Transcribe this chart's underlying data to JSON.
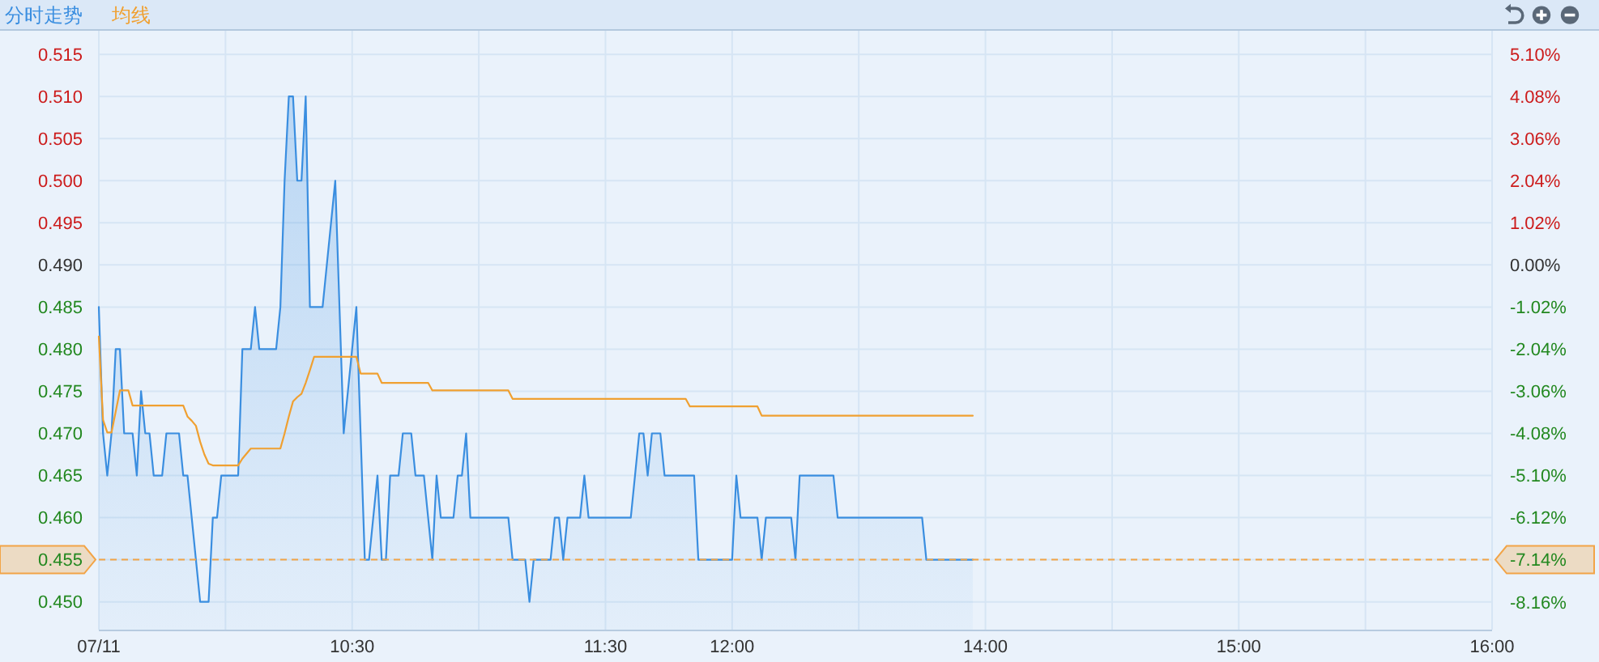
{
  "chart_data": {
    "type": "area",
    "legend": "top left",
    "grid": true,
    "categories": [
      "07/11",
      null,
      null,
      null,
      null,
      null,
      null,
      null,
      null,
      null,
      null,
      null,
      null,
      null,
      null,
      null,
      null,
      null,
      null,
      null,
      null,
      null,
      null,
      null,
      null,
      null,
      null,
      null,
      null,
      null,
      null,
      null,
      null,
      null,
      null,
      null,
      null,
      null,
      null,
      null,
      null,
      null,
      null,
      null,
      null,
      null,
      null,
      null,
      null,
      null,
      null,
      null,
      null,
      null,
      null,
      null,
      null,
      null,
      null,
      null,
      "10:30",
      null,
      null,
      null,
      null,
      null,
      null,
      null,
      null,
      null,
      null,
      null,
      null,
      null,
      null,
      null,
      null,
      null,
      null,
      null,
      null,
      null,
      null,
      null,
      null,
      null,
      null,
      null,
      null,
      null,
      null,
      null,
      null,
      null,
      null,
      null,
      null,
      null,
      null,
      null,
      null,
      null,
      null,
      null,
      null,
      null,
      null,
      null,
      null,
      null,
      null,
      null,
      null,
      null,
      null,
      null,
      null,
      null,
      null,
      null,
      "11:30",
      null,
      null,
      null,
      null,
      null,
      null,
      null,
      null,
      null,
      null,
      null,
      null,
      null,
      null,
      null,
      null,
      null,
      null,
      null,
      null,
      null,
      null,
      null,
      null,
      null,
      null,
      null,
      null,
      null,
      "12:00",
      null,
      null,
      null,
      null,
      null,
      null,
      null,
      null,
      null,
      null,
      null,
      null,
      null,
      null,
      null,
      null,
      null,
      null,
      null,
      null,
      null,
      null,
      null,
      null,
      null,
      null,
      null,
      null,
      null,
      null,
      null,
      null,
      null,
      null,
      null,
      null,
      null,
      null,
      null,
      null,
      null,
      null,
      null,
      null,
      null,
      null,
      null,
      null,
      null,
      null,
      null,
      null,
      null,
      null,
      null,
      null,
      null,
      null,
      null,
      "14:00",
      null,
      null,
      null,
      null,
      null,
      null,
      null,
      null,
      null,
      null,
      null,
      null,
      null,
      null,
      null,
      null,
      null,
      null,
      null,
      null,
      null,
      null,
      null,
      null,
      null,
      null,
      null,
      null,
      null,
      null,
      null,
      null,
      null,
      null,
      null,
      null,
      null,
      null,
      null,
      null,
      null,
      null,
      null,
      null,
      null,
      null,
      null,
      null,
      null,
      null,
      null,
      null,
      null,
      null,
      null,
      null,
      null,
      null,
      null,
      "15:00",
      null,
      null,
      null,
      null,
      null,
      null,
      null,
      null,
      null,
      null,
      null,
      null,
      null,
      null,
      null,
      null,
      null,
      null,
      null,
      null,
      null,
      null,
      null,
      null,
      null,
      null,
      null,
      null,
      null,
      null,
      null,
      null,
      null,
      null,
      null,
      null,
      null,
      null,
      null,
      null,
      null,
      null,
      null,
      null,
      null,
      null,
      null,
      null,
      null,
      null,
      null,
      null,
      null,
      null,
      null,
      null,
      null,
      null,
      null,
      "16:00"
    ],
    "ylim": [
      0.4467,
      0.5178
    ],
    "yticks": [
      {
        "value": 0.45,
        "label": "0.450"
      },
      0.455,
      {
        "value": 0.46,
        "label": "0.460"
      },
      0.465,
      {
        "value": 0.47,
        "label": "0.470"
      },
      0.475,
      {
        "value": 0.48,
        "label": "0.480"
      },
      0.485,
      {
        "value": 0.49,
        "label": "0.490"
      },
      0.495,
      {
        "value": 0.5,
        "label": "0.500"
      },
      0.505,
      {
        "value": 0.51,
        "label": "0.510"
      },
      0.515
    ],
    "y2lim": [
      -8.83,
      5.67
    ],
    "y2ticks": [
      {
        "value": -8.16,
        "label": "-8.16%"
      },
      {
        "value": -7.14,
        "label": "-7.14%"
      },
      {
        "value": -6.12,
        "label": "-6.12%"
      },
      {
        "value": -5.1,
        "label": "-5.10%"
      },
      {
        "value": -4.08,
        "label": "-4.08%"
      },
      {
        "value": -3.06,
        "label": "-3.06%"
      },
      {
        "value": -2.04,
        "label": "-2.04%"
      },
      {
        "value": -1.02,
        "label": "-1.02%"
      },
      {
        "value": 0,
        "label": "0.00%"
      },
      {
        "value": 1.02,
        "label": "1.02%"
      },
      {
        "value": 2.04,
        "label": "2.04%"
      },
      {
        "value": 3.06,
        "label": "3.06%"
      },
      {
        "value": 4.08,
        "label": "4.08%"
      },
      {
        "value": 5.1,
        "label": "5.10%"
      }
    ],
    "series": [
      {
        "name": "分时走势",
        "color": "#3a8ee0",
        "values": [
          0.485,
          0.47,
          0.465,
          0.47,
          0.48,
          0.48,
          0.47,
          0.47,
          0.47,
          0.465,
          0.475,
          0.47,
          0.47,
          0.465,
          0.465,
          0.465,
          0.47,
          0.47,
          0.47,
          0.47,
          0.465,
          0.465,
          0.46,
          0.455,
          0.45,
          0.45,
          0.45,
          0.46,
          0.46,
          0.465,
          0.465,
          0.465,
          0.465,
          0.465,
          0.48,
          0.48,
          0.48,
          0.485,
          0.48,
          0.48,
          0.48,
          0.48,
          0.48,
          0.485,
          0.5,
          0.51,
          0.51,
          0.5,
          0.5,
          0.51,
          0.485,
          0.485,
          0.485,
          0.485,
          0.49,
          0.495,
          0.5,
          0.485,
          0.47,
          0.475,
          0.48,
          0.485,
          0.47,
          0.455,
          0.455,
          0.46,
          0.465,
          0.455,
          0.455,
          0.465,
          0.465,
          0.465,
          0.47,
          0.47,
          0.47,
          0.465,
          0.465,
          0.465,
          0.46,
          0.455,
          0.465,
          0.46,
          0.46,
          0.46,
          0.46,
          0.465,
          0.465,
          0.47,
          0.46,
          0.46,
          0.46,
          0.46,
          0.46,
          0.46,
          0.46,
          0.46,
          0.46,
          0.46,
          0.455,
          0.455,
          0.455,
          0.455,
          0.45,
          0.455,
          0.455,
          0.455,
          0.455,
          0.455,
          0.46,
          0.46,
          0.455,
          0.46,
          0.46,
          0.46,
          0.46,
          0.465,
          0.46,
          0.46,
          0.46,
          0.46,
          0.46,
          0.46,
          0.46,
          0.46,
          0.46,
          0.46,
          0.46,
          0.465,
          0.47,
          0.47,
          0.465,
          0.47,
          0.47,
          0.47,
          0.465,
          0.465,
          0.465,
          0.465,
          0.465,
          0.465,
          0.465,
          0.465,
          0.455,
          0.455,
          0.455,
          0.455,
          0.455,
          0.455,
          0.455,
          0.455,
          0.455,
          0.465,
          0.46,
          0.46,
          0.46,
          0.46,
          0.46,
          0.455,
          0.46,
          0.46,
          0.46,
          0.46,
          0.46,
          0.46,
          0.46,
          0.455,
          0.465,
          0.465,
          0.465,
          0.465,
          0.465,
          0.465,
          0.465,
          0.465,
          0.465,
          0.46,
          0.46,
          0.46,
          0.46,
          0.46,
          0.46,
          0.46,
          0.46,
          0.46,
          0.46,
          0.46,
          0.46,
          0.46,
          0.46,
          0.46,
          0.46,
          0.46,
          0.46,
          0.46,
          0.46,
          0.46,
          0.455,
          0.455,
          0.455,
          0.455,
          0.455,
          0.455,
          0.455,
          0.455,
          0.455,
          0.455,
          0.455,
          0.455,
          null,
          null,
          null,
          null,
          null,
          null,
          null,
          null,
          null,
          null,
          null,
          null,
          null,
          null,
          null,
          null,
          null,
          null,
          null,
          null,
          null,
          null,
          null,
          null,
          null,
          null,
          null,
          null,
          null,
          null,
          null,
          null,
          null,
          null,
          null,
          null,
          null,
          null,
          null,
          null,
          null,
          null,
          null,
          null,
          null,
          null,
          null,
          null,
          null,
          null,
          null,
          null,
          null,
          null,
          null,
          null,
          null,
          null,
          null,
          null,
          null,
          null,
          null,
          null,
          null,
          null,
          null,
          null,
          null,
          null,
          null,
          null,
          null,
          null,
          null,
          null,
          null,
          null,
          null,
          null,
          null,
          null,
          null,
          null,
          null,
          null,
          null,
          null,
          null,
          null,
          null,
          null,
          null,
          null,
          null,
          null,
          null,
          null,
          null,
          null,
          null,
          null,
          null,
          null,
          null,
          null,
          null,
          null,
          null,
          null,
          null,
          null,
          null,
          null,
          null,
          null,
          null,
          null,
          null,
          null,
          null,
          null,
          null
        ]
      },
      {
        "name": "均线",
        "type": "line",
        "color": "#f0a030",
        "values": [
          0.4815,
          0.4716,
          0.4701,
          0.4701,
          0.4726,
          0.4751,
          0.4751,
          0.4751,
          0.4733,
          0.4733,
          0.4733,
          0.4733,
          0.4733,
          0.4733,
          0.4733,
          0.4733,
          0.4733,
          0.4733,
          0.4733,
          0.4733,
          0.4733,
          0.472,
          0.4715,
          0.4709,
          0.469,
          0.4675,
          0.4664,
          0.4662,
          0.4662,
          0.4662,
          0.4662,
          0.4662,
          0.4662,
          0.4662,
          0.467,
          0.4676,
          0.4682,
          0.4682,
          0.4682,
          0.4682,
          0.4682,
          0.4682,
          0.4682,
          0.4682,
          0.47,
          0.472,
          0.4738,
          0.4743,
          0.4747,
          0.476,
          0.4775,
          0.4791,
          0.4791,
          0.4791,
          0.4791,
          0.4791,
          0.4791,
          0.4791,
          0.4791,
          0.4791,
          0.4791,
          0.4791,
          0.4771,
          0.4771,
          0.4771,
          0.4771,
          0.4771,
          0.476,
          0.476,
          0.476,
          0.476,
          0.476,
          0.476,
          0.476,
          0.476,
          0.476,
          0.476,
          0.476,
          0.476,
          0.4751,
          0.4751,
          0.4751,
          0.4751,
          0.4751,
          0.4751,
          0.4751,
          0.4751,
          0.4751,
          0.4751,
          0.4751,
          0.4751,
          0.4751,
          0.4751,
          0.4751,
          0.4751,
          0.4751,
          0.4751,
          0.4751,
          0.4741,
          0.4741,
          0.4741,
          0.4741,
          0.4741,
          0.4741,
          0.4741,
          0.4741,
          0.4741,
          0.4741,
          0.4741,
          0.4741,
          0.4741,
          0.4741,
          0.4741,
          0.4741,
          0.4741,
          0.4741,
          0.4741,
          0.4741,
          0.4741,
          0.4741,
          0.4741,
          0.4741,
          0.4741,
          0.4741,
          0.4741,
          0.4741,
          0.4741,
          0.4741,
          0.4741,
          0.4741,
          0.4741,
          0.4741,
          0.4741,
          0.4741,
          0.4741,
          0.4741,
          0.4741,
          0.4741,
          0.4741,
          0.4741,
          0.4732,
          0.4732,
          0.4732,
          0.4732,
          0.4732,
          0.4732,
          0.4732,
          0.4732,
          0.4732,
          0.4732,
          0.4732,
          0.4732,
          0.4732,
          0.4732,
          0.4732,
          0.4732,
          0.4732,
          0.4721,
          0.4721,
          0.4721,
          0.4721,
          0.4721,
          0.4721,
          0.4721,
          0.4721,
          0.4721,
          0.4721,
          0.4721,
          0.4721,
          0.4721,
          0.4721,
          0.4721,
          0.4721,
          0.4721,
          0.4721,
          0.4721,
          0.4721,
          0.4721,
          0.4721,
          0.4721,
          0.4721,
          0.4721,
          0.4721,
          0.4721,
          0.4721,
          0.4721,
          0.4721,
          0.4721,
          0.4721,
          0.4721,
          0.4721,
          0.4721,
          0.4721,
          0.4721,
          0.4721,
          0.4721,
          0.4721,
          0.4721,
          0.4721,
          0.4721,
          0.4721,
          0.4721,
          0.4721,
          0.4721,
          0.4721,
          0.4721,
          0.4721,
          0.4721,
          null,
          null,
          null,
          null,
          null,
          null,
          null,
          null,
          null,
          null,
          null,
          null,
          null,
          null,
          null,
          null,
          null,
          null,
          null,
          null,
          null,
          null,
          null,
          null,
          null,
          null,
          null,
          null,
          null,
          null,
          null,
          null,
          null,
          null,
          null,
          null,
          null,
          null,
          null,
          null,
          null,
          null,
          null,
          null,
          null,
          null,
          null,
          null,
          null,
          null,
          null,
          null,
          null,
          null,
          null,
          null,
          null,
          null,
          null,
          null,
          null,
          null,
          null,
          null,
          null,
          null,
          null,
          null,
          null,
          null,
          null,
          null,
          null,
          null,
          null,
          null,
          null,
          null,
          null,
          null,
          null,
          null,
          null,
          null,
          null,
          null,
          null,
          null,
          null,
          null,
          null,
          null,
          null,
          null,
          null,
          null,
          null,
          null,
          null,
          null,
          null,
          null,
          null,
          null,
          null,
          null,
          null,
          null,
          null,
          null,
          null,
          null,
          null,
          null,
          null,
          null,
          null,
          null,
          null,
          null,
          null,
          null,
          null
        ]
      }
    ],
    "ref_lines": [
      {
        "axis": "y",
        "value": 0.455,
        "color": "#f2a447",
        "line_style": "dashed"
      }
    ]
  }
}
